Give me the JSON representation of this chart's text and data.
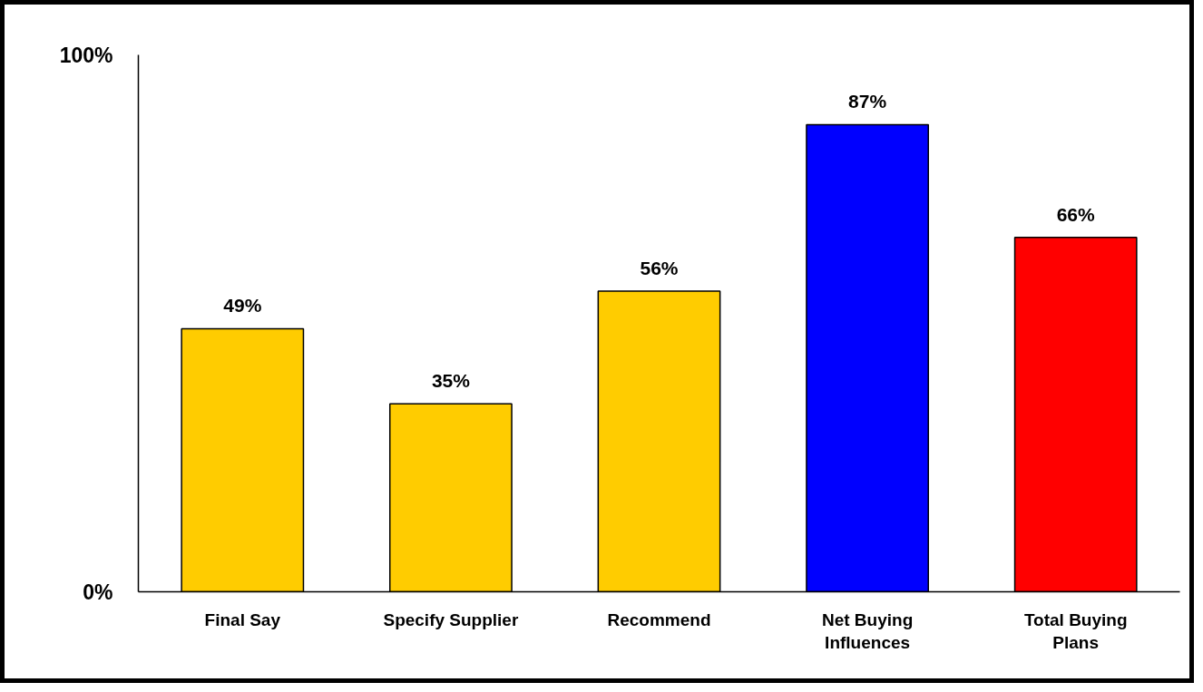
{
  "chart_data": {
    "type": "bar",
    "categories": [
      "Final Say",
      "Specify Supplier",
      "Recommend",
      "Net Buying\nInfluences",
      "Total Buying\nPlans"
    ],
    "values": [
      49,
      35,
      56,
      87,
      66
    ],
    "colors": [
      "#ffcc00",
      "#ffcc00",
      "#ffcc00",
      "#0000ff",
      "#ff0000"
    ],
    "value_labels": [
      "49%",
      "35%",
      "56%",
      "87%",
      "66%"
    ],
    "ylim": [
      0,
      100
    ],
    "yticks": [
      {
        "value": 0,
        "label": "0%"
      },
      {
        "value": 100,
        "label": "100%"
      }
    ],
    "grid": false
  }
}
